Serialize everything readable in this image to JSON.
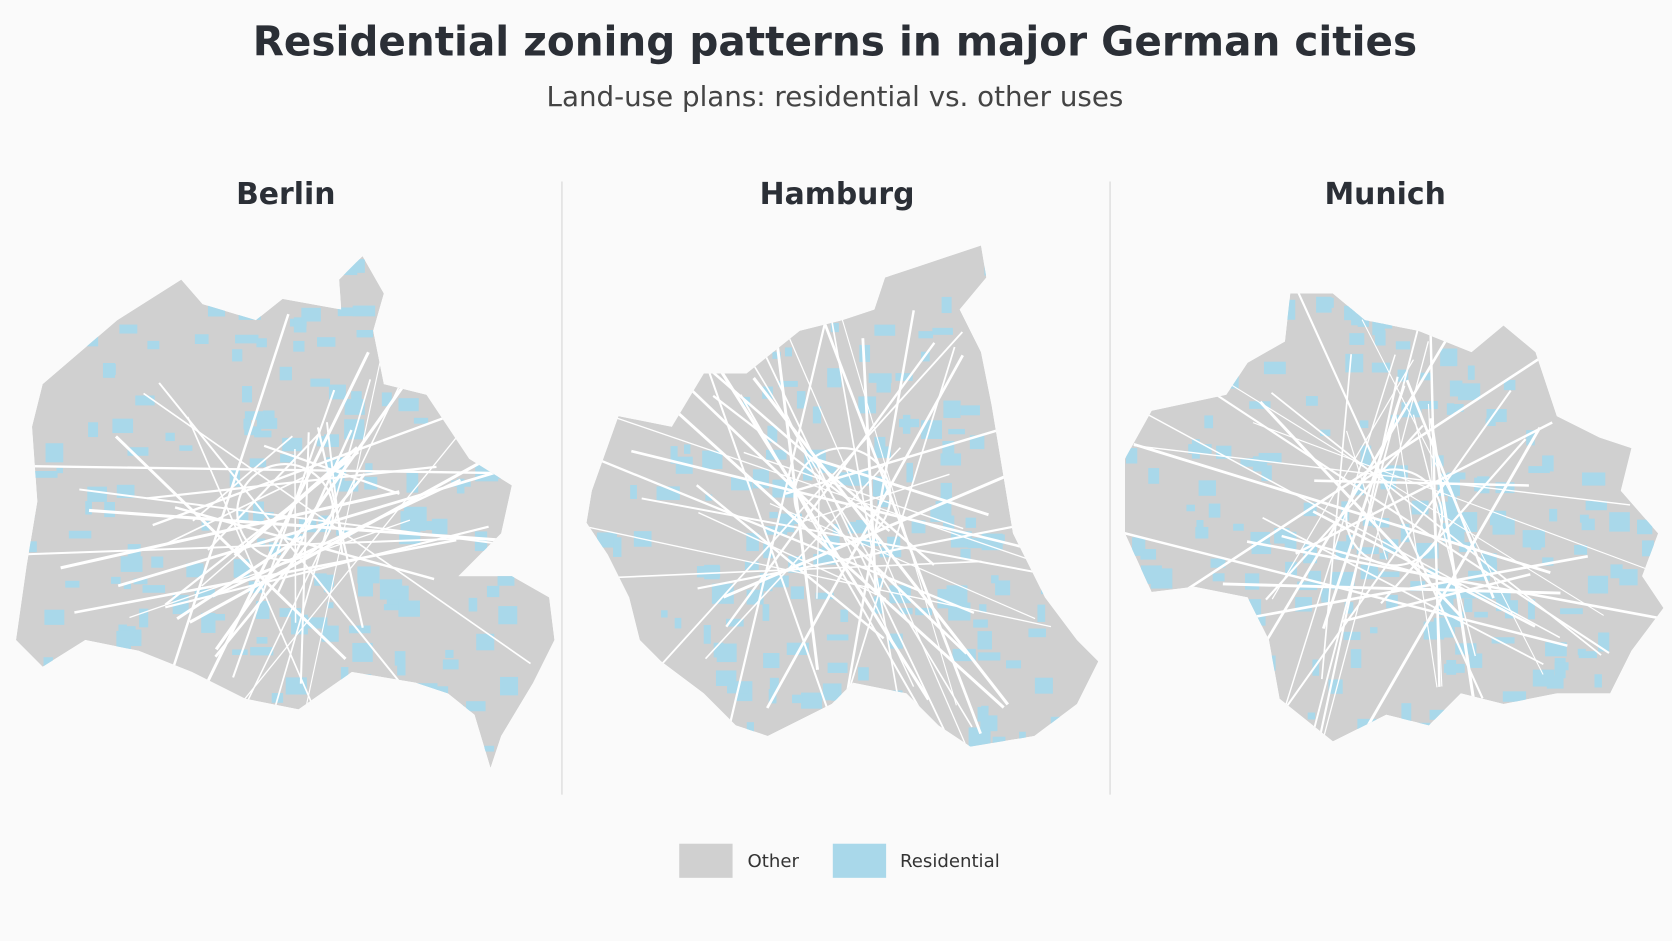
{
  "header": {
    "title": "Residential zoning patterns in major German cities",
    "subtitle": "Land-use plans: residential vs. other uses"
  },
  "panels": [
    {
      "name": "Berlin"
    },
    {
      "name": "Hamburg"
    },
    {
      "name": "Munich"
    }
  ],
  "legend": [
    {
      "label": "Other",
      "color": "#d0d0d0"
    },
    {
      "label": "Residential",
      "color": "#a9d8ea"
    }
  ]
}
